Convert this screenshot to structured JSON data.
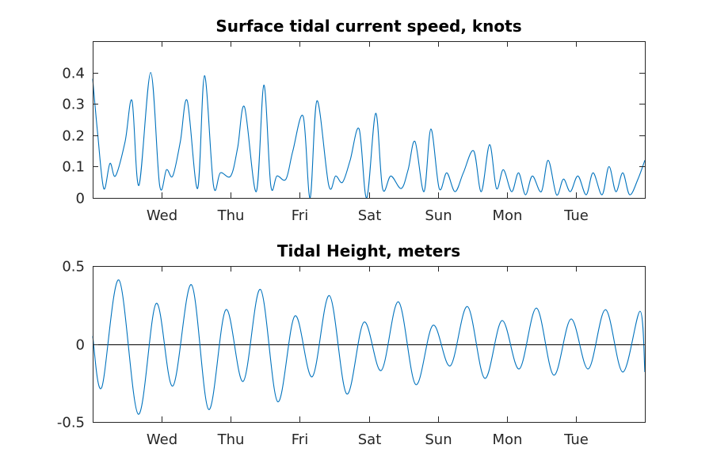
{
  "chart_data": [
    {
      "type": "line",
      "title": "Surface tidal current speed, knots",
      "xlabel": "",
      "ylabel": "",
      "x_unit": "days",
      "xlim": [
        0,
        8
      ],
      "ylim": [
        0,
        0.5
      ],
      "yticks": [
        0,
        0.1,
        0.2,
        0.3,
        0.4
      ],
      "ytick_labels": [
        "0",
        "0.1",
        "0.2",
        "0.3",
        "0.4"
      ],
      "xticks": [
        1,
        2,
        3,
        4,
        5,
        6,
        7
      ],
      "xtick_labels": [
        "Wed",
        "Thu",
        "Fri",
        "Sat",
        "Sun",
        "Mon",
        "Tue"
      ],
      "grid": false,
      "color": "#0072bd",
      "series": [
        {
          "x": [
            0,
            0.07,
            0.16,
            0.25,
            0.33,
            0.47,
            0.57,
            0.67,
            0.84,
            0.97,
            1.07,
            1.16,
            1.27,
            1.37,
            1.52,
            1.62,
            1.75,
            1.85,
            2.0,
            2.1,
            2.2,
            2.37,
            2.48,
            2.58,
            2.67,
            2.8,
            2.9,
            3.05,
            3.15,
            3.25,
            3.42,
            3.52,
            3.62,
            3.73,
            3.86,
            3.97,
            4.1,
            4.2,
            4.32,
            4.47,
            4.57,
            4.67,
            4.8,
            4.9,
            5.02,
            5.13,
            5.25,
            5.37,
            5.52,
            5.63,
            5.75,
            5.85,
            5.95,
            6.07,
            6.17,
            6.27,
            6.37,
            6.5,
            6.6,
            6.72,
            6.82,
            6.92,
            7.03,
            7.15,
            7.25,
            7.38,
            7.48,
            7.58,
            7.68,
            7.78,
            7.9,
            8.0
          ],
          "y": [
            0.38,
            0.21,
            0.03,
            0.11,
            0.07,
            0.18,
            0.31,
            0.04,
            0.4,
            0.04,
            0.09,
            0.07,
            0.18,
            0.31,
            0.03,
            0.39,
            0.04,
            0.08,
            0.07,
            0.16,
            0.29,
            0.02,
            0.36,
            0.04,
            0.07,
            0.06,
            0.15,
            0.26,
            0.0,
            0.31,
            0.04,
            0.07,
            0.05,
            0.12,
            0.22,
            0.0,
            0.27,
            0.03,
            0.07,
            0.03,
            0.09,
            0.18,
            0.02,
            0.22,
            0.03,
            0.08,
            0.02,
            0.08,
            0.15,
            0.02,
            0.17,
            0.03,
            0.09,
            0.02,
            0.08,
            0.01,
            0.07,
            0.02,
            0.12,
            0.01,
            0.06,
            0.02,
            0.07,
            0.01,
            0.08,
            0.01,
            0.1,
            0.02,
            0.08,
            0.01,
            0.06,
            0.12
          ]
        }
      ]
    },
    {
      "type": "line",
      "title": "Tidal Height, meters",
      "xlabel": "",
      "ylabel": "",
      "x_unit": "days",
      "xlim": [
        0,
        8
      ],
      "ylim": [
        -0.5,
        0.5
      ],
      "yticks": [
        -0.5,
        0,
        0.5
      ],
      "ytick_labels": [
        "-0.5",
        "0",
        "0.5"
      ],
      "xticks": [
        1,
        2,
        3,
        4,
        5,
        6,
        7
      ],
      "xtick_labels": [
        "Wed",
        "Thu",
        "Fri",
        "Sat",
        "Sun",
        "Mon",
        "Tue"
      ],
      "grid": false,
      "zero_line": true,
      "color": "#0072bd",
      "series": [
        {
          "x": [
            0,
            0.13,
            0.38,
            0.66,
            0.92,
            1.16,
            1.43,
            1.68,
            1.93,
            2.18,
            2.43,
            2.68,
            2.93,
            3.18,
            3.43,
            3.68,
            3.93,
            4.18,
            4.43,
            4.68,
            4.93,
            5.18,
            5.43,
            5.68,
            5.93,
            6.18,
            6.43,
            6.68,
            6.93,
            7.18,
            7.43,
            7.68,
            7.93,
            8.0
          ],
          "y": [
            0.05,
            -0.28,
            0.41,
            -0.45,
            0.26,
            -0.27,
            0.38,
            -0.42,
            0.22,
            -0.24,
            0.35,
            -0.37,
            0.18,
            -0.21,
            0.31,
            -0.32,
            0.14,
            -0.17,
            0.27,
            -0.26,
            0.12,
            -0.14,
            0.24,
            -0.22,
            0.15,
            -0.16,
            0.23,
            -0.2,
            0.16,
            -0.16,
            0.22,
            -0.18,
            0.21,
            -0.18
          ]
        }
      ]
    }
  ]
}
